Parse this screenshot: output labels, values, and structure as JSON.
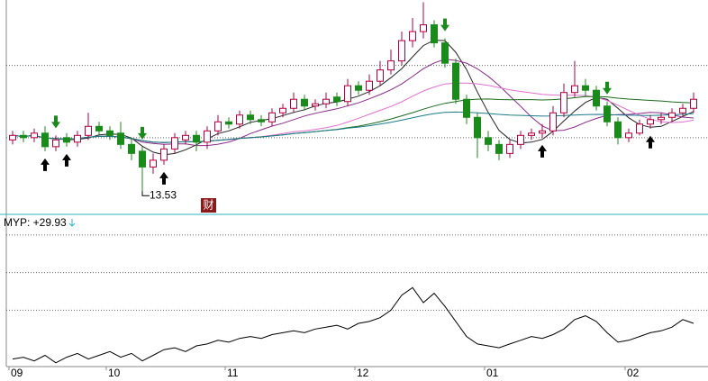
{
  "chart_data": {
    "type": "candlestick",
    "ylim": [
      12.5,
      22.0
    ],
    "yticks": [
      15.9,
      19.1
    ],
    "grid": true,
    "up_color": "#b0003c",
    "down_color": "#1a8a1a",
    "candles": {
      "open": [
        15.8,
        16.0,
        15.9,
        16.1,
        15.5,
        15.9,
        15.7,
        16.0,
        16.4,
        16.2,
        16.1,
        15.6,
        15.3,
        14.6,
        14.9,
        15.4,
        15.8,
        16.0,
        15.7,
        16.2,
        16.6,
        16.5,
        16.9,
        16.7,
        16.6,
        17.0,
        17.2,
        17.6,
        17.3,
        17.4,
        17.7,
        17.5,
        18.2,
        18.0,
        18.4,
        18.9,
        19.3,
        20.2,
        20.6,
        20.9,
        20.1,
        19.2,
        17.6,
        16.8,
        15.9,
        15.6,
        15.2,
        15.6,
        16.0,
        16.1,
        16.2,
        17.0,
        17.9,
        18.2,
        18.0,
        17.3,
        16.6,
        15.9,
        16.1,
        16.5,
        16.7,
        16.8,
        17.0,
        17.2
      ],
      "high": [
        16.2,
        16.2,
        16.3,
        16.4,
        16.0,
        16.1,
        16.2,
        17.0,
        16.6,
        16.4,
        16.6,
        15.9,
        15.5,
        15.2,
        15.6,
        16.1,
        16.2,
        16.2,
        16.4,
        16.9,
        16.8,
        17.1,
        17.1,
        16.9,
        17.2,
        17.4,
        17.9,
        17.8,
        17.6,
        17.9,
        17.9,
        18.5,
        18.4,
        18.7,
        19.3,
        19.8,
        20.6,
        21.2,
        21.9,
        21.1,
        20.3,
        19.4,
        17.8,
        17.0,
        16.2,
        15.8,
        15.8,
        16.2,
        16.3,
        16.5,
        17.3,
        18.3,
        19.3,
        18.5,
        18.2,
        17.5,
        16.8,
        16.3,
        16.7,
        16.9,
        17.0,
        17.2,
        17.4,
        17.9
      ],
      "low": [
        15.6,
        15.7,
        15.7,
        15.3,
        15.3,
        15.5,
        15.5,
        15.8,
        16.0,
        15.8,
        15.4,
        14.9,
        13.53,
        14.3,
        14.7,
        15.2,
        15.6,
        15.3,
        15.4,
        16.0,
        16.3,
        16.3,
        16.5,
        16.4,
        16.4,
        16.8,
        17.0,
        17.1,
        17.1,
        17.2,
        17.3,
        17.3,
        17.8,
        17.8,
        18.2,
        18.7,
        19.1,
        19.9,
        20.3,
        19.9,
        19.0,
        17.4,
        16.5,
        15.0,
        15.3,
        14.9,
        15.0,
        15.4,
        15.8,
        15.9,
        16.0,
        16.8,
        17.7,
        17.7,
        17.1,
        16.4,
        15.6,
        15.7,
        16.0,
        16.3,
        16.5,
        16.6,
        16.8,
        17.0
      ],
      "close": [
        16.0,
        15.9,
        16.1,
        15.5,
        15.8,
        15.7,
        16.0,
        16.4,
        16.2,
        16.0,
        15.6,
        15.2,
        14.6,
        14.9,
        15.4,
        15.9,
        16.0,
        15.7,
        16.2,
        16.6,
        16.5,
        16.9,
        16.7,
        16.6,
        17.0,
        17.2,
        17.6,
        17.3,
        17.4,
        17.6,
        17.5,
        18.2,
        18.0,
        18.4,
        18.9,
        19.3,
        20.2,
        20.6,
        20.9,
        20.1,
        19.2,
        17.6,
        16.8,
        15.9,
        15.6,
        15.2,
        15.6,
        16.0,
        16.1,
        16.2,
        17.0,
        17.9,
        18.2,
        18.0,
        17.3,
        16.6,
        15.9,
        16.1,
        16.5,
        16.7,
        16.8,
        17.0,
        17.2,
        17.6
      ]
    },
    "signals": {
      "buy": [
        3,
        5,
        14,
        49,
        59
      ],
      "sell": [
        4,
        12,
        40,
        55
      ]
    },
    "icon_label": "财",
    "x_labels": [
      {
        "index": 0,
        "label": "09"
      },
      {
        "index": 9,
        "label": "10"
      },
      {
        "index": 20,
        "label": "11"
      },
      {
        "index": 32,
        "label": "12"
      },
      {
        "index": 44,
        "label": "01"
      },
      {
        "index": 57,
        "label": "02"
      }
    ],
    "indicator": {
      "label": "MYP: +29.93",
      "color": "#000000",
      "ylim": [
        -10,
        70
      ],
      "yticks": [
        20,
        40,
        60
      ],
      "values": [
        -6,
        -5,
        -7,
        -4,
        -8,
        -5,
        -3,
        -6,
        -4,
        -2,
        -5,
        -3,
        -7,
        -4,
        -1,
        0,
        -2,
        1,
        2,
        4,
        3,
        5,
        6,
        5,
        7,
        8,
        9,
        8,
        10,
        11,
        12,
        10,
        13,
        14,
        16,
        20,
        28,
        32,
        24,
        29,
        22,
        14,
        6,
        2,
        1,
        0,
        2,
        4,
        6,
        5,
        7,
        10,
        15,
        17,
        14,
        8,
        3,
        4,
        6,
        8,
        9,
        11,
        15,
        13
      ]
    }
  }
}
